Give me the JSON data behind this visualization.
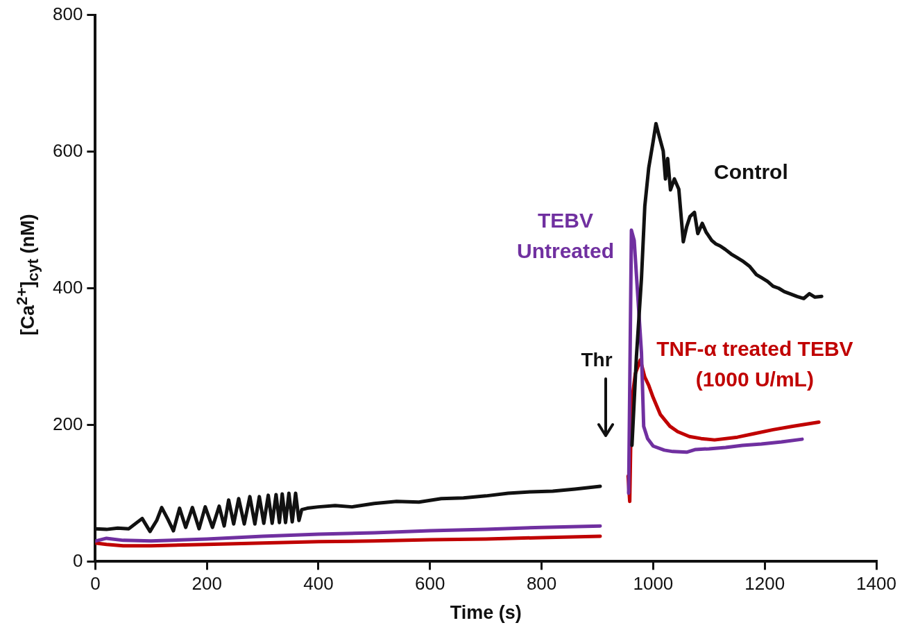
{
  "chart_data": {
    "type": "line",
    "xlabel": "Time (s)",
    "ylabel": "[Ca$^{2+}$]$_{cyt}$ (nM)",
    "xlim": [
      0,
      1400
    ],
    "xticks": [
      0,
      200,
      400,
      600,
      800,
      1000,
      1200,
      1400
    ],
    "ylim": [
      0,
      800
    ],
    "yticks": [
      0,
      200,
      400,
      600,
      800
    ],
    "grid": false,
    "legend": false,
    "marker": "none",
    "line_style": "solid",
    "annotations": [
      "Thr"
    ],
    "series": [
      {
        "name": "Control",
        "color": "#111111",
        "x": [
          0,
          20,
          40,
          60,
          84,
          98,
          110,
          119,
          130,
          140,
          151,
          162,
          174,
          186,
          197,
          210,
          222,
          231,
          239,
          248,
          257,
          267,
          277,
          286,
          294,
          302,
          310,
          317,
          324,
          330,
          335,
          341,
          347,
          353,
          359,
          365,
          370,
          380,
          400,
          430,
          460,
          500,
          540,
          580,
          620,
          660,
          700,
          740,
          780,
          820,
          860,
          905,
          935,
          962,
          970,
          979,
          985,
          992,
          1000,
          1005,
          1010,
          1018,
          1022,
          1026,
          1031,
          1038,
          1046,
          1054,
          1060,
          1066,
          1074,
          1080,
          1088,
          1095,
          1105,
          1112,
          1120,
          1129,
          1140,
          1150,
          1160,
          1173,
          1185,
          1195,
          1205,
          1215,
          1225,
          1235,
          1245,
          1258,
          1270,
          1280,
          1290,
          1302
        ],
        "values": [
          48,
          47,
          49,
          48,
          63,
          44,
          60,
          79,
          62,
          45,
          78,
          50,
          79,
          48,
          80,
          50,
          81,
          52,
          90,
          55,
          92,
          55,
          95,
          55,
          95,
          56,
          97,
          56,
          98,
          57,
          99,
          57,
          100,
          58,
          100,
          60,
          76,
          78,
          80,
          82,
          80,
          85,
          88,
          87,
          92,
          93,
          96,
          100,
          102,
          103,
          106,
          110,
          null,
          170,
          300,
          414,
          520,
          576,
          615,
          641,
          625,
          601,
          560,
          590,
          544,
          560,
          545,
          468,
          490,
          505,
          511,
          480,
          495,
          482,
          470,
          465,
          462,
          457,
          450,
          445,
          440,
          432,
          420,
          415,
          410,
          403,
          400,
          395,
          392,
          388,
          385,
          392,
          387,
          388
        ]
      },
      {
        "name": "TEBV\nUntreated",
        "color": "#7030a0",
        "x": [
          0,
          20,
          50,
          100,
          200,
          300,
          400,
          500,
          600,
          700,
          800,
          905,
          935,
          956,
          961,
          966,
          979,
          983,
          990,
          1000,
          1020,
          1035,
          1060,
          1076,
          1100,
          1130,
          1160,
          1194,
          1230,
          1267
        ],
        "values": [
          30,
          34,
          31,
          30,
          33,
          37,
          40,
          42,
          45,
          47,
          50,
          52,
          null,
          100,
          485,
          470,
          306,
          198,
          180,
          169,
          163,
          161,
          160,
          164,
          165,
          167,
          170,
          172,
          175,
          179
        ]
      },
      {
        "name": "TNF-α treated TEBV\n(1000 U/mL)",
        "color": "#c00000",
        "x": [
          0,
          20,
          50,
          100,
          200,
          300,
          400,
          500,
          600,
          700,
          800,
          905,
          935,
          955,
          958,
          961,
          968,
          977,
          985,
          992,
          1000,
          1013,
          1030,
          1044,
          1065,
          1086,
          1110,
          1151,
          1180,
          1215,
          1250,
          1297
        ],
        "values": [
          27,
          25,
          23,
          23,
          25,
          27,
          29,
          30,
          32,
          33,
          35,
          37,
          null,
          125,
          88,
          230,
          275,
          295,
          270,
          258,
          240,
          215,
          198,
          190,
          183,
          180,
          178,
          182,
          187,
          193,
          198,
          204
        ]
      }
    ]
  }
}
